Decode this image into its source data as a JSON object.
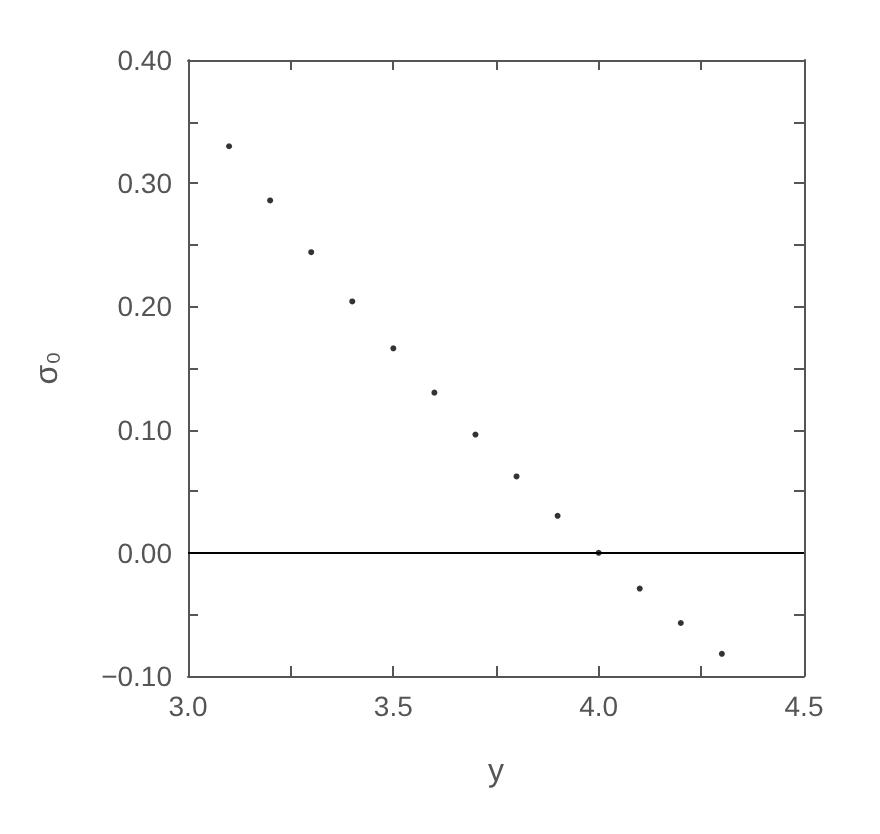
{
  "chart_data": {
    "type": "scatter",
    "xlabel": "y",
    "ylabel": "σ₀",
    "x": [
      3.1,
      3.2,
      3.3,
      3.4,
      3.5,
      3.6,
      3.7,
      3.8,
      3.9,
      4.0,
      4.1,
      4.2,
      4.3
    ],
    "series": [
      {
        "color": "#000000",
        "values": [
          0.33,
          0.286,
          0.244,
          0.204,
          0.166,
          0.13,
          0.096,
          0.062,
          0.03,
          0.0,
          -0.029,
          -0.057,
          -0.082
        ]
      }
    ],
    "xlim": [
      3.0,
      4.5
    ],
    "xticks": [
      {
        "value": 3.0,
        "label": "3.0"
      },
      {
        "value": 3.25,
        "label": null
      },
      {
        "value": 3.5,
        "label": "3.5"
      },
      {
        "value": 3.75,
        "label": null
      },
      {
        "value": 4.0,
        "label": "4.0"
      },
      {
        "value": 4.25,
        "label": null
      },
      {
        "value": 4.5,
        "label": "4.5"
      }
    ],
    "ylim": [
      -0.1,
      0.4
    ],
    "yticks": [
      {
        "value": -0.1,
        "label": "−0.10"
      },
      {
        "value": -0.05,
        "label": null
      },
      {
        "value": 0.0,
        "label": "0.00"
      },
      {
        "value": 0.05,
        "label": null
      },
      {
        "value": 0.1,
        "label": "0.10"
      },
      {
        "value": 0.15,
        "label": null
      },
      {
        "value": 0.2,
        "label": "0.20"
      },
      {
        "value": 0.25,
        "label": null
      },
      {
        "value": 0.3,
        "label": "0.30"
      },
      {
        "value": 0.35,
        "label": null
      },
      {
        "value": 0.4,
        "label": "0.40"
      }
    ],
    "ref_lines": [
      {
        "axis": "y",
        "value": 0.0,
        "color": "#000000"
      }
    ],
    "grid": false,
    "marker": "circle"
  }
}
